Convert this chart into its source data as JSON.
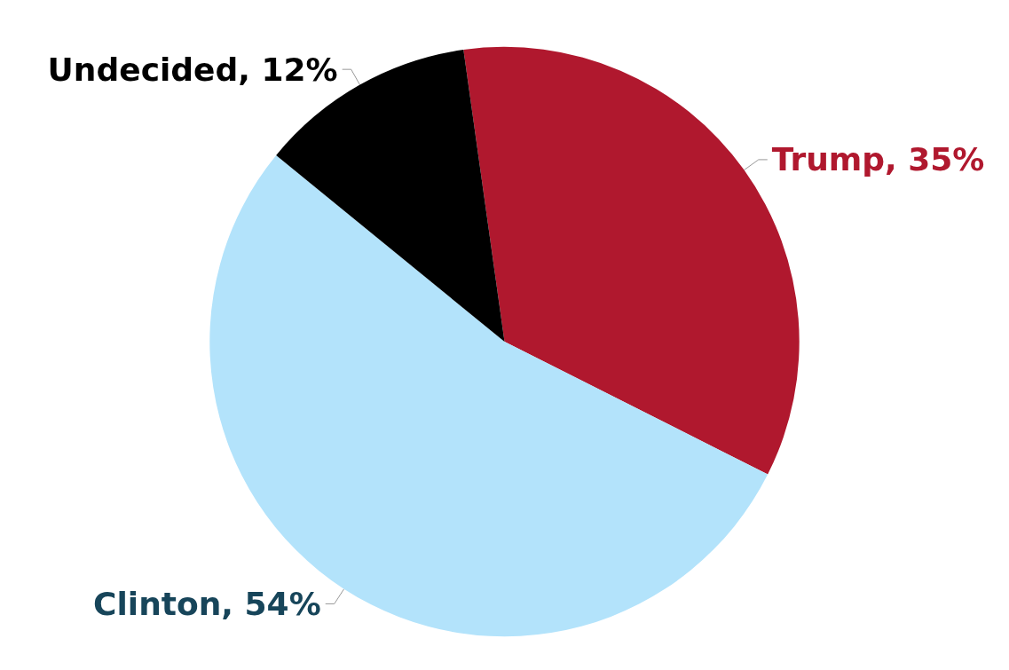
{
  "chart_data": {
    "type": "pie",
    "categories": [
      "Trump",
      "Clinton",
      "Undecided"
    ],
    "values": [
      35,
      54,
      12
    ],
    "value_labels": [
      "35%",
      "54%",
      "12%"
    ],
    "colors": [
      "#b0182e",
      "#b3e3fb",
      "#000000"
    ]
  }
}
